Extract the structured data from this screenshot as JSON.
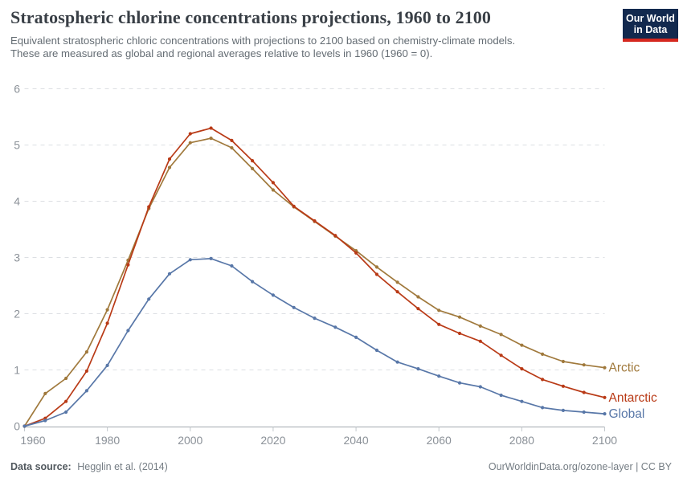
{
  "header": {
    "title": "Stratospheric chlorine concentrations projections, 1960 to 2100",
    "subtitle_lines": [
      "Equivalent stratospheric chloric concentrations with projections to 2100 based on chemistry-climate models.",
      "These are measured as global and regional averages relative to levels in 1960 (1960 = 0)."
    ],
    "logo": {
      "line1": "Our World",
      "line2": "in Data",
      "background_color": "#12294e",
      "stripe_color": "#d5281f"
    }
  },
  "chart_data": {
    "type": "line",
    "title": "Stratospheric chlorine concentrations projections, 1960 to 2100",
    "xlabel": "",
    "ylabel": "",
    "xlim": [
      1960,
      2100
    ],
    "ylim": [
      0,
      6
    ],
    "xticks": [
      1960,
      1980,
      2000,
      2020,
      2040,
      2060,
      2080,
      2100
    ],
    "yticks": [
      0,
      1,
      2,
      3,
      4,
      5,
      6
    ],
    "grid": "horizontal-dashed",
    "legend_position": "right-end-labels",
    "x": [
      1960,
      1965,
      1970,
      1975,
      1980,
      1985,
      1990,
      1995,
      2000,
      2005,
      2010,
      2015,
      2020,
      2025,
      2030,
      2035,
      2040,
      2045,
      2050,
      2055,
      2060,
      2065,
      2070,
      2075,
      2080,
      2085,
      2090,
      2095,
      2100
    ],
    "series": [
      {
        "name": "Arctic",
        "color": "#a0793c",
        "values": [
          0,
          0.58,
          0.85,
          1.32,
          2.07,
          2.95,
          3.87,
          4.6,
          5.04,
          5.12,
          4.95,
          4.58,
          4.2,
          3.9,
          3.64,
          3.38,
          3.12,
          2.83,
          2.56,
          2.3,
          2.06,
          1.94,
          1.78,
          1.63,
          1.44,
          1.28,
          1.15,
          1.09,
          1.04
        ]
      },
      {
        "name": "Antarctic",
        "color": "#b93a16",
        "values": [
          0,
          0.14,
          0.44,
          0.98,
          1.83,
          2.87,
          3.9,
          4.75,
          5.2,
          5.3,
          5.08,
          4.72,
          4.33,
          3.91,
          3.65,
          3.39,
          3.08,
          2.7,
          2.39,
          2.09,
          1.81,
          1.65,
          1.51,
          1.26,
          1.02,
          0.83,
          0.71,
          0.6,
          0.51
        ]
      },
      {
        "name": "Global",
        "color": "#5877a8",
        "values": [
          0,
          0.1,
          0.25,
          0.63,
          1.08,
          1.7,
          2.26,
          2.71,
          2.96,
          2.98,
          2.85,
          2.57,
          2.33,
          2.11,
          1.92,
          1.76,
          1.58,
          1.35,
          1.14,
          1.02,
          0.89,
          0.77,
          0.7,
          0.55,
          0.44,
          0.33,
          0.28,
          0.25,
          0.22
        ]
      }
    ],
    "axis_style": {
      "tick_label_color": "#8b9198",
      "gridline_color": "#dcdfe3",
      "axis_line_color": "#a3a9af",
      "tick_mark_color": "#c3c8cd"
    }
  },
  "footer": {
    "source_label": "Data source:",
    "source_value": "Hegglin et al. (2014)",
    "credit": "OurWorldinData.org/ozone-layer | CC BY"
  }
}
